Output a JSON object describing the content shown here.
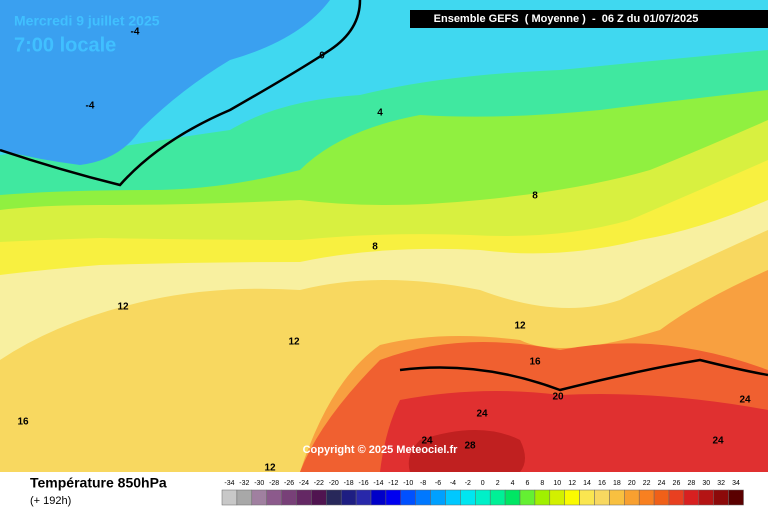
{
  "header": {
    "title": "Mercredi 9 juillet 2025",
    "subtitle": "7:00 locale",
    "model": "Ensemble GEFS  ( Moyenne )  -  06 Z du 01/07/2025"
  },
  "map": {
    "contour_labels": [
      -4,
      -4,
      0,
      4,
      8,
      8,
      12,
      12,
      12,
      16,
      16,
      20,
      24,
      24,
      24,
      24,
      28,
      12
    ],
    "copyright": "Copyright © 2025 Meteociel.fr"
  },
  "footer": {
    "variable": "Température 850hPa",
    "lead": "(+ 192h)"
  },
  "legend": {
    "ticks": [
      -34,
      -32,
      -30,
      -28,
      -26,
      -24,
      -22,
      -20,
      -18,
      -16,
      -14,
      -12,
      -10,
      -8,
      -6,
      -4,
      -2,
      0,
      2,
      4,
      6,
      8,
      10,
      12,
      14,
      16,
      18,
      20,
      22,
      24,
      26,
      28,
      30,
      32,
      34
    ],
    "colors": [
      "#c8c8c8",
      "#a8a8a8",
      "#a080a0",
      "#8c5a8c",
      "#784078",
      "#642864",
      "#501450",
      "#28285a",
      "#1e1e82",
      "#2828aa",
      "#0000c8",
      "#0000f0",
      "#0050ff",
      "#0078ff",
      "#00a0ff",
      "#00c8ff",
      "#00e6f0",
      "#00f0c8",
      "#00f096",
      "#00e664",
      "#64f032",
      "#a0f000",
      "#d2f000",
      "#fafa00",
      "#fae650",
      "#f8d860",
      "#f8c040",
      "#f8a030",
      "#f88020",
      "#f06018",
      "#e84020",
      "#d82020",
      "#b41414",
      "#8c0a0a",
      "#5a0000"
    ]
  }
}
